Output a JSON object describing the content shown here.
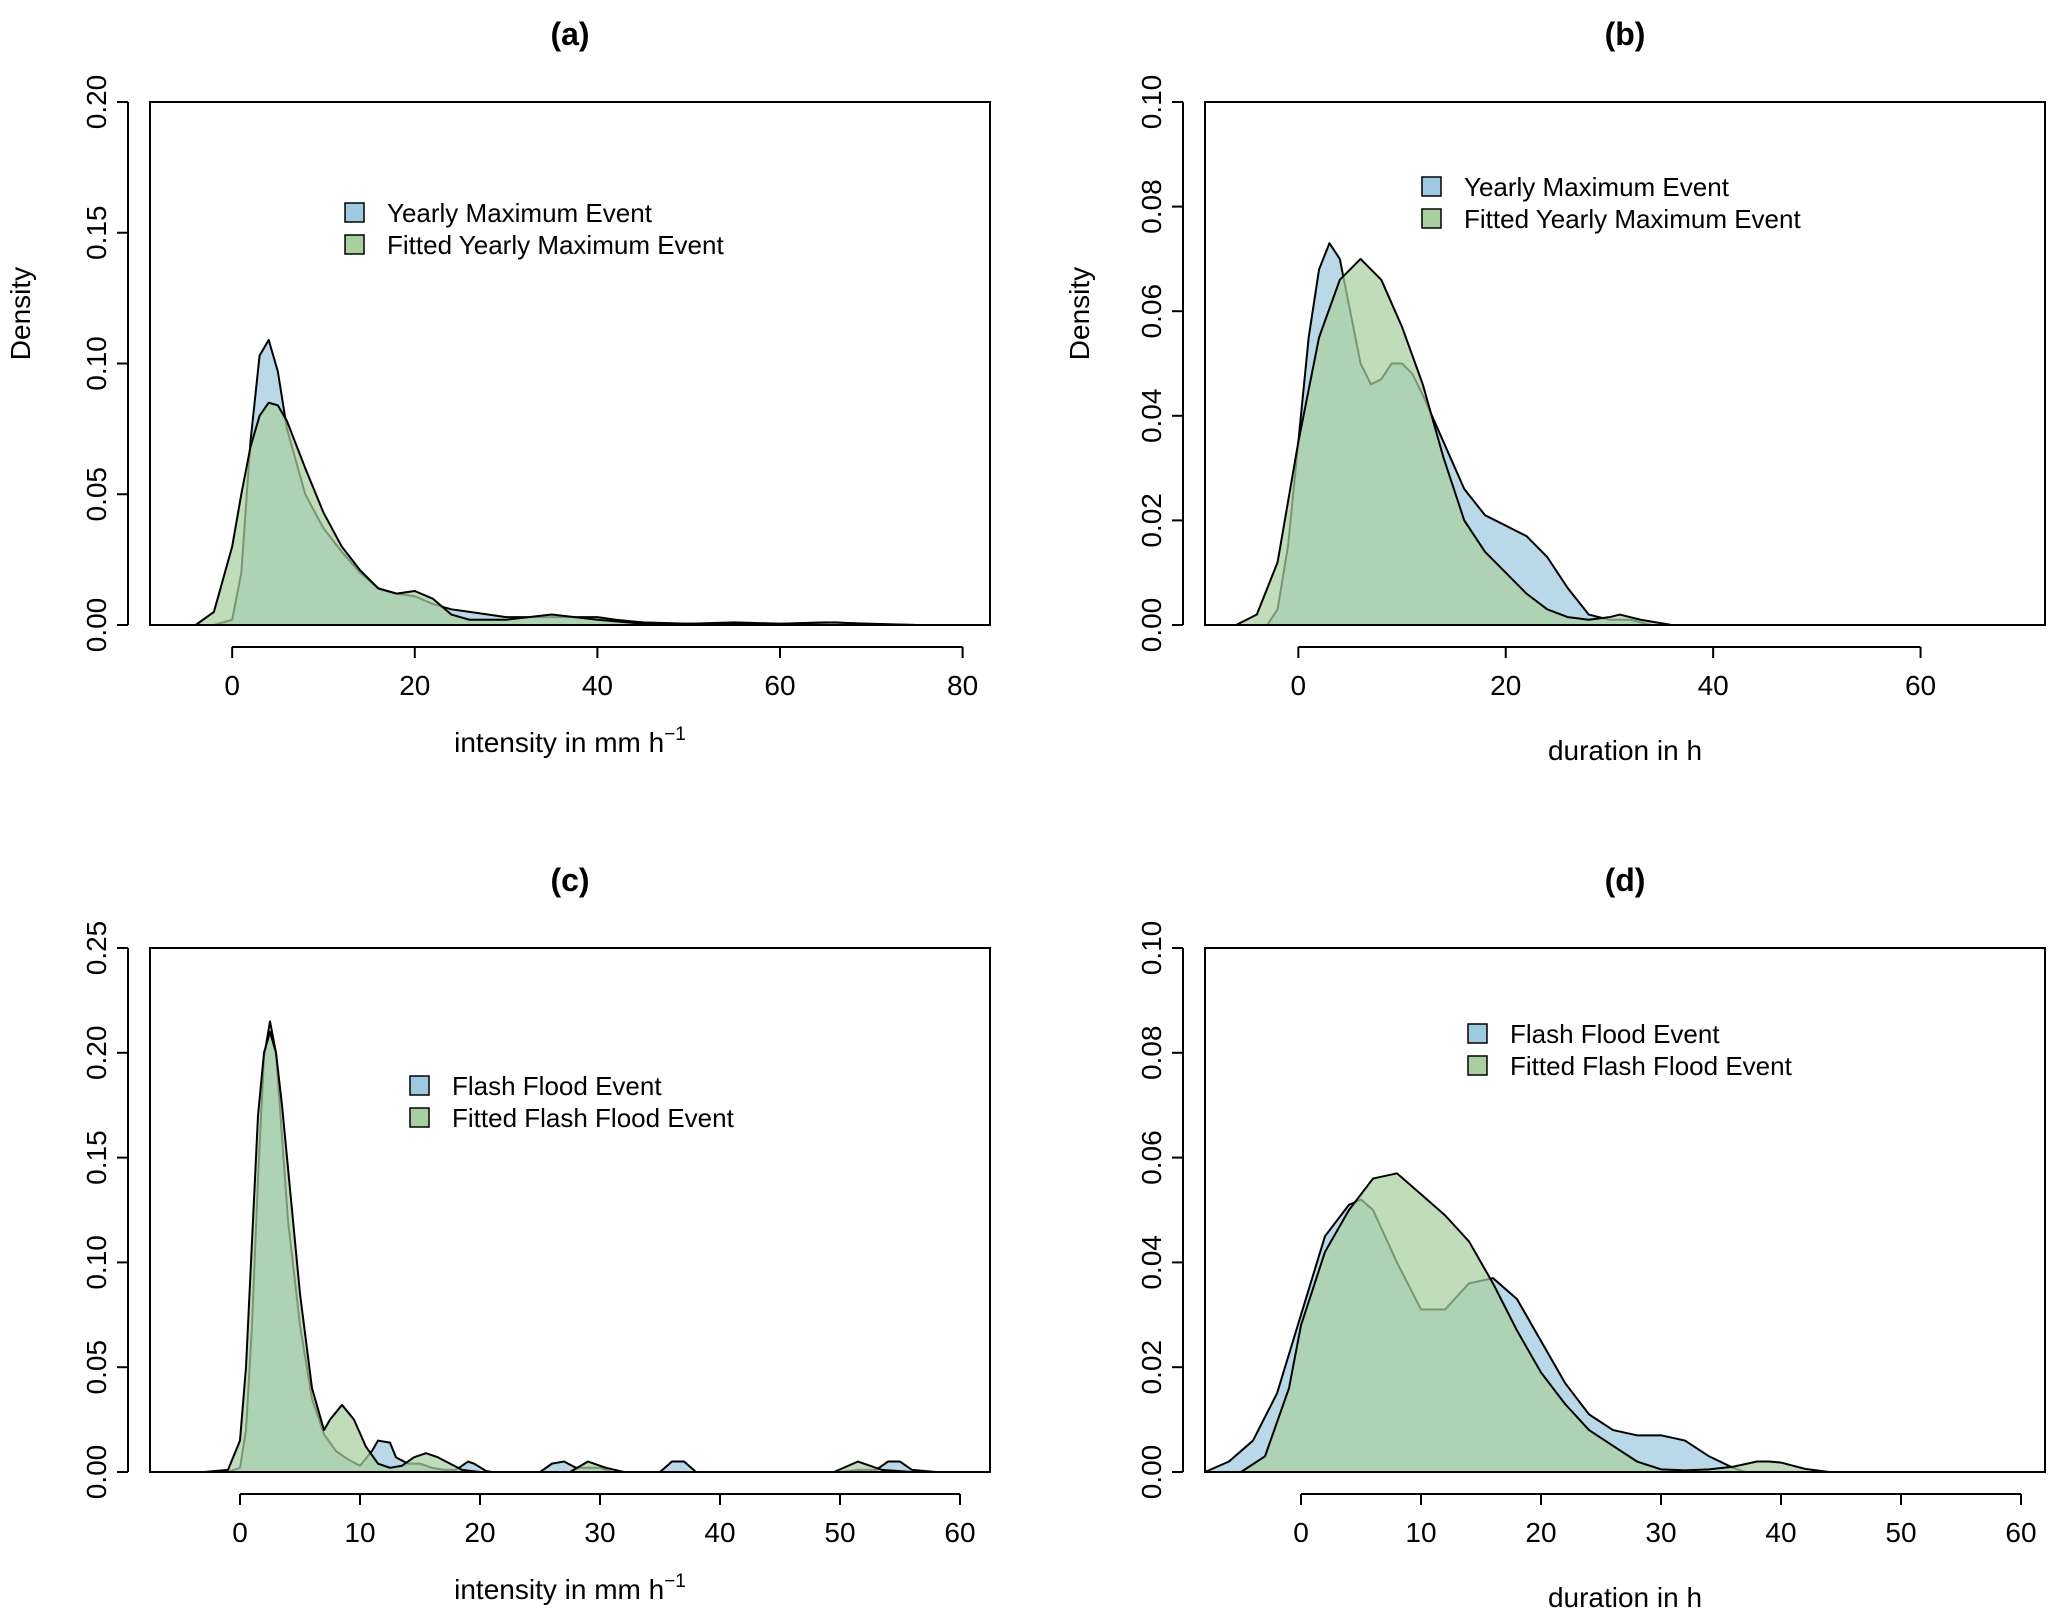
{
  "colors": {
    "observed": "#9ecae1",
    "fitted": "#a9cfa0",
    "overlap": "#9fc9b8",
    "stroke": "#000000"
  },
  "chart_data": [
    {
      "id": "a",
      "type": "area",
      "title": "(a)",
      "xlabel": "intensity in mm h",
      "xlabel_sup": "−1",
      "ylabel": "Density",
      "xlim": [
        -9,
        83
      ],
      "ylim": [
        0,
        0.2
      ],
      "xticks": [
        0,
        20,
        40,
        60,
        80
      ],
      "yticks": [
        0.0,
        0.05,
        0.1,
        0.15,
        0.2
      ],
      "ytick_labels": [
        "0.00",
        "0.05",
        "0.10",
        "0.15",
        "0.20"
      ],
      "legend_position": "top-center",
      "series": [
        {
          "name": "Yearly Maximum Event",
          "color": "observed",
          "x": [
            -2,
            0,
            1,
            2,
            3,
            4,
            5,
            6,
            8,
            10,
            12,
            14,
            16,
            18,
            20,
            22,
            24,
            26,
            28,
            30,
            33,
            36,
            40,
            42,
            45,
            50,
            55,
            60,
            65,
            70,
            75
          ],
          "y": [
            0,
            0.002,
            0.02,
            0.07,
            0.103,
            0.109,
            0.097,
            0.075,
            0.05,
            0.037,
            0.028,
            0.02,
            0.014,
            0.012,
            0.011,
            0.008,
            0.006,
            0.005,
            0.004,
            0.003,
            0.003,
            0.003,
            0.003,
            0.002,
            0.001,
            0.0005,
            0.001,
            0.0005,
            0.001,
            0.0005,
            0
          ]
        },
        {
          "name": "Fitted Yearly Maximum Event",
          "color": "fitted",
          "x": [
            -4,
            -2,
            0,
            1,
            2,
            3,
            4,
            5,
            6,
            8,
            10,
            12,
            14,
            16,
            18,
            20,
            22,
            24,
            26,
            30,
            35,
            40,
            45,
            50,
            60,
            66,
            70,
            75
          ],
          "y": [
            0,
            0.005,
            0.03,
            0.05,
            0.068,
            0.08,
            0.085,
            0.084,
            0.078,
            0.06,
            0.043,
            0.03,
            0.021,
            0.014,
            0.012,
            0.013,
            0.01,
            0.004,
            0.002,
            0.002,
            0.004,
            0.002,
            0.0005,
            0.0005,
            0.0005,
            0.001,
            0.0003,
            0
          ]
        }
      ]
    },
    {
      "id": "b",
      "type": "area",
      "title": "(b)",
      "xlabel": "duration in h",
      "xlabel_sup": "",
      "ylabel": "Density",
      "xlim": [
        -9,
        72
      ],
      "ylim": [
        0,
        0.1
      ],
      "xticks": [
        0,
        20,
        40,
        60
      ],
      "yticks": [
        0.0,
        0.02,
        0.04,
        0.06,
        0.08,
        0.1
      ],
      "ytick_labels": [
        "0.00",
        "0.02",
        "0.04",
        "0.06",
        "0.08",
        "0.10"
      ],
      "legend_position": "top-center",
      "series": [
        {
          "name": "Yearly Maximum Event",
          "color": "observed",
          "x": [
            -3,
            -2,
            -1,
            0,
            1,
            2,
            3,
            4,
            5,
            6,
            7,
            8,
            9,
            10,
            11,
            12,
            14,
            16,
            18,
            20,
            22,
            24,
            26,
            28,
            30,
            32,
            34
          ],
          "y": [
            0,
            0.003,
            0.015,
            0.035,
            0.055,
            0.068,
            0.073,
            0.07,
            0.06,
            0.05,
            0.046,
            0.047,
            0.05,
            0.05,
            0.048,
            0.044,
            0.035,
            0.026,
            0.021,
            0.019,
            0.017,
            0.013,
            0.007,
            0.002,
            0.001,
            0.001,
            0
          ]
        },
        {
          "name": "Fitted Yearly Maximum Event",
          "color": "fitted",
          "x": [
            -6,
            -4,
            -2,
            0,
            2,
            4,
            6,
            8,
            10,
            12,
            14,
            16,
            18,
            20,
            22,
            24,
            26,
            28,
            30,
            31,
            33,
            36
          ],
          "y": [
            0,
            0.002,
            0.012,
            0.035,
            0.055,
            0.066,
            0.07,
            0.066,
            0.057,
            0.046,
            0.032,
            0.02,
            0.014,
            0.01,
            0.006,
            0.003,
            0.0015,
            0.001,
            0.0015,
            0.002,
            0.001,
            0
          ]
        }
      ]
    },
    {
      "id": "c",
      "type": "area",
      "title": "(c)",
      "xlabel": "intensity in mm h",
      "xlabel_sup": "−1",
      "ylabel": "",
      "xlim": [
        -7.5,
        62.5
      ],
      "ylim": [
        0,
        0.25
      ],
      "xticks": [
        0,
        10,
        20,
        30,
        40,
        50,
        60
      ],
      "yticks": [
        0.0,
        0.05,
        0.1,
        0.15,
        0.2,
        0.25
      ],
      "ytick_labels": [
        "0.00",
        "0.05",
        "0.10",
        "0.15",
        "0.20",
        "0.25"
      ],
      "legend_position": "top-center",
      "series": [
        {
          "name": "Flash Flood Event",
          "color": "observed",
          "x": [
            -1,
            0,
            0.5,
            1,
            1.5,
            2,
            2.5,
            3,
            3.5,
            4,
            5,
            6,
            7,
            8,
            9,
            10,
            11,
            11.5,
            12.5,
            13,
            14,
            15,
            16,
            17,
            18,
            19,
            19.5,
            20.5,
            21,
            25,
            26,
            27,
            28,
            29,
            30,
            31,
            35,
            36,
            37,
            38,
            50,
            51.5,
            53,
            54,
            55,
            56,
            58
          ],
          "y": [
            0,
            0.002,
            0.02,
            0.07,
            0.14,
            0.198,
            0.215,
            0.2,
            0.16,
            0.12,
            0.07,
            0.035,
            0.018,
            0.01,
            0.006,
            0.003,
            0.01,
            0.015,
            0.014,
            0.007,
            0.004,
            0.004,
            0.002,
            0.001,
            0.001,
            0.005,
            0.004,
            0.0005,
            0,
            0,
            0.004,
            0.005,
            0.002,
            0.002,
            0.002,
            0,
            0,
            0.005,
            0.005,
            0,
            0,
            0.001,
            0.001,
            0.005,
            0.005,
            0.001,
            0
          ]
        },
        {
          "name": "Fitted Flash Flood Event",
          "color": "fitted",
          "x": [
            -3,
            -1,
            0,
            0.5,
            1,
            1.5,
            2,
            2.5,
            3,
            3.5,
            4,
            5,
            6,
            7,
            7.5,
            8.5,
            9.5,
            10.5,
            11.5,
            12.5,
            13.5,
            14.5,
            15.5,
            16.5,
            17.5,
            18.5,
            20,
            27.5,
            29,
            30.5,
            32,
            49.5,
            51.5,
            53.5,
            56
          ],
          "y": [
            0,
            0.001,
            0.015,
            0.05,
            0.11,
            0.17,
            0.2,
            0.21,
            0.2,
            0.175,
            0.145,
            0.085,
            0.04,
            0.02,
            0.025,
            0.032,
            0.025,
            0.012,
            0.004,
            0.002,
            0.003,
            0.007,
            0.009,
            0.007,
            0.004,
            0.001,
            0,
            0,
            0.005,
            0.002,
            0,
            0,
            0.005,
            0.001,
            0
          ]
        }
      ]
    },
    {
      "id": "d",
      "type": "area",
      "title": "(d)",
      "xlabel": "duration in h",
      "xlabel_sup": "",
      "ylabel": "",
      "xlim": [
        -8,
        62
      ],
      "ylim": [
        0,
        0.1
      ],
      "xticks": [
        0,
        10,
        20,
        30,
        40,
        50,
        60
      ],
      "yticks": [
        0.0,
        0.02,
        0.04,
        0.06,
        0.08,
        0.1
      ],
      "ytick_labels": [
        "0.00",
        "0.02",
        "0.04",
        "0.06",
        "0.08",
        "0.10"
      ],
      "legend_position": "top-center",
      "series": [
        {
          "name": "Flash Flood Event",
          "color": "observed",
          "x": [
            -8,
            -6,
            -4,
            -2,
            0,
            2,
            4,
            5,
            6,
            8,
            10,
            12,
            14,
            16,
            18,
            20,
            22,
            24,
            26,
            28,
            30,
            32,
            34,
            36,
            37
          ],
          "y": [
            0,
            0.002,
            0.006,
            0.015,
            0.03,
            0.045,
            0.051,
            0.052,
            0.05,
            0.04,
            0.031,
            0.031,
            0.036,
            0.037,
            0.033,
            0.025,
            0.017,
            0.011,
            0.008,
            0.007,
            0.007,
            0.006,
            0.003,
            0.0008,
            0
          ]
        },
        {
          "name": "Fitted Flash Flood Event",
          "color": "fitted",
          "x": [
            -5,
            -3,
            -1,
            0,
            2,
            4,
            6,
            8,
            10,
            12,
            14,
            16,
            18,
            20,
            22,
            24,
            26,
            28,
            30,
            32,
            34,
            36,
            38,
            39,
            40,
            42,
            44
          ],
          "y": [
            0,
            0.003,
            0.016,
            0.028,
            0.042,
            0.05,
            0.056,
            0.057,
            0.053,
            0.049,
            0.044,
            0.036,
            0.027,
            0.019,
            0.013,
            0.008,
            0.005,
            0.002,
            0.0005,
            0.0003,
            0.0005,
            0.001,
            0.002,
            0.002,
            0.0018,
            0.0006,
            0
          ]
        }
      ]
    }
  ]
}
